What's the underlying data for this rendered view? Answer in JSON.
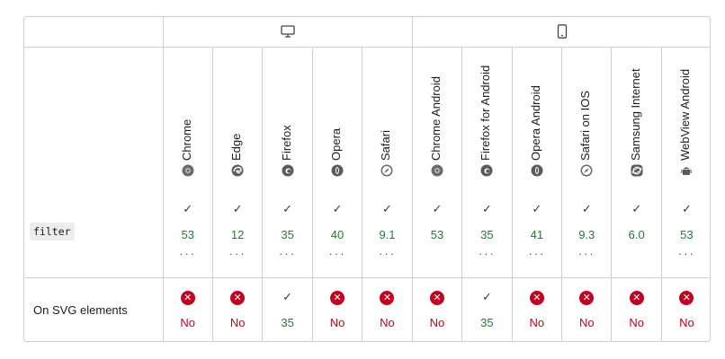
{
  "platforms": [
    {
      "name": "desktop-icon",
      "colspan": 5
    },
    {
      "name": "mobile-icon",
      "colspan": 6
    }
  ],
  "browsers": [
    {
      "name": "Chrome",
      "icon": "chrome-icon"
    },
    {
      "name": "Edge",
      "icon": "edge-icon"
    },
    {
      "name": "Firefox",
      "icon": "firefox-icon"
    },
    {
      "name": "Opera",
      "icon": "opera-icon"
    },
    {
      "name": "Safari",
      "icon": "safari-icon"
    },
    {
      "name": "Chrome Android",
      "icon": "chrome-icon"
    },
    {
      "name": "Firefox for Android",
      "icon": "firefox-icon"
    },
    {
      "name": "Opera Android",
      "icon": "opera-icon"
    },
    {
      "name": "Safari on IOS",
      "icon": "safari-icon"
    },
    {
      "name": "Samsung Internet",
      "icon": "samsung-internet-icon"
    },
    {
      "name": "WebView Android",
      "icon": "android-icon"
    }
  ],
  "rows": [
    {
      "feature": "filter",
      "code": true,
      "cells": [
        {
          "supported": true,
          "version": "53",
          "more": true
        },
        {
          "supported": true,
          "version": "12",
          "more": true
        },
        {
          "supported": true,
          "version": "35",
          "more": true
        },
        {
          "supported": true,
          "version": "40",
          "more": true
        },
        {
          "supported": true,
          "version": "9.1",
          "more": true
        },
        {
          "supported": true,
          "version": "53",
          "more": false
        },
        {
          "supported": true,
          "version": "35",
          "more": true
        },
        {
          "supported": true,
          "version": "41",
          "more": true
        },
        {
          "supported": true,
          "version": "9.3",
          "more": true
        },
        {
          "supported": true,
          "version": "6.0",
          "more": false
        },
        {
          "supported": true,
          "version": "53",
          "more": true
        }
      ]
    },
    {
      "feature": "On SVG elements",
      "code": false,
      "cells": [
        {
          "supported": false,
          "version": "No"
        },
        {
          "supported": false,
          "version": "No"
        },
        {
          "supported": true,
          "version": "35"
        },
        {
          "supported": false,
          "version": "No"
        },
        {
          "supported": false,
          "version": "No"
        },
        {
          "supported": false,
          "version": "No"
        },
        {
          "supported": true,
          "version": "35"
        },
        {
          "supported": false,
          "version": "No"
        },
        {
          "supported": false,
          "version": "No"
        },
        {
          "supported": false,
          "version": "No"
        },
        {
          "supported": false,
          "version": "No"
        }
      ]
    }
  ],
  "symbols": {
    "check": "✓",
    "cross": "✕",
    "more": "···"
  },
  "colors": {
    "supported": "#1e7d32",
    "unsupported": "#c6001f",
    "border": "#cfcfcf"
  }
}
